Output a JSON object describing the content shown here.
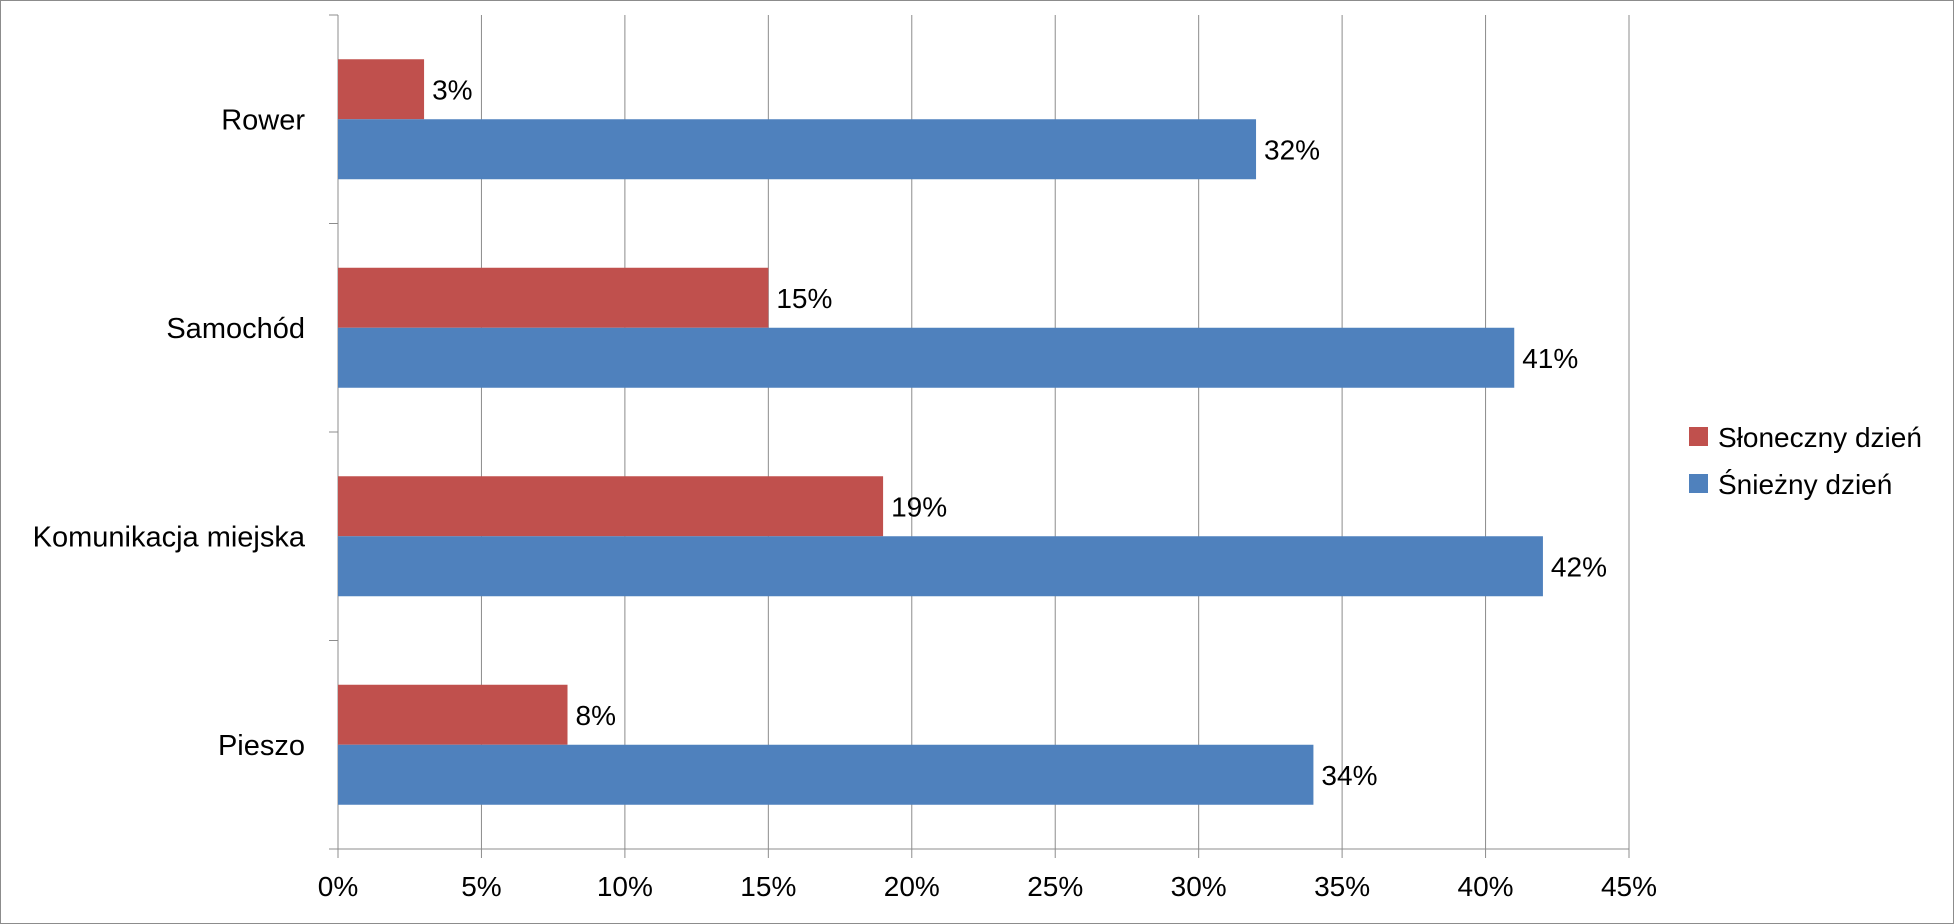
{
  "chart_data": {
    "type": "bar",
    "orientation": "horizontal",
    "categories": [
      "Rower",
      "Samochód",
      "Komunikacja miejska",
      "Pieszo"
    ],
    "series": [
      {
        "name": "Słoneczny dzień",
        "color": "#c0504d",
        "values": [
          3,
          15,
          19,
          8
        ],
        "labels": [
          "3%",
          "15%",
          "19%",
          "8%"
        ]
      },
      {
        "name": "Śnieżny dzień",
        "color": "#4f81bd",
        "values": [
          32,
          41,
          42,
          34
        ],
        "labels": [
          "32%",
          "41%",
          "42%",
          "34%"
        ]
      }
    ],
    "x_ticks": [
      0,
      5,
      10,
      15,
      20,
      25,
      30,
      35,
      40,
      45
    ],
    "x_tick_labels": [
      "0%",
      "5%",
      "10%",
      "15%",
      "20%",
      "25%",
      "30%",
      "35%",
      "40%",
      "45%"
    ],
    "xlim": [
      0,
      45
    ],
    "grid": true,
    "legend_position": "right",
    "title": "",
    "xlabel": "",
    "ylabel": ""
  }
}
